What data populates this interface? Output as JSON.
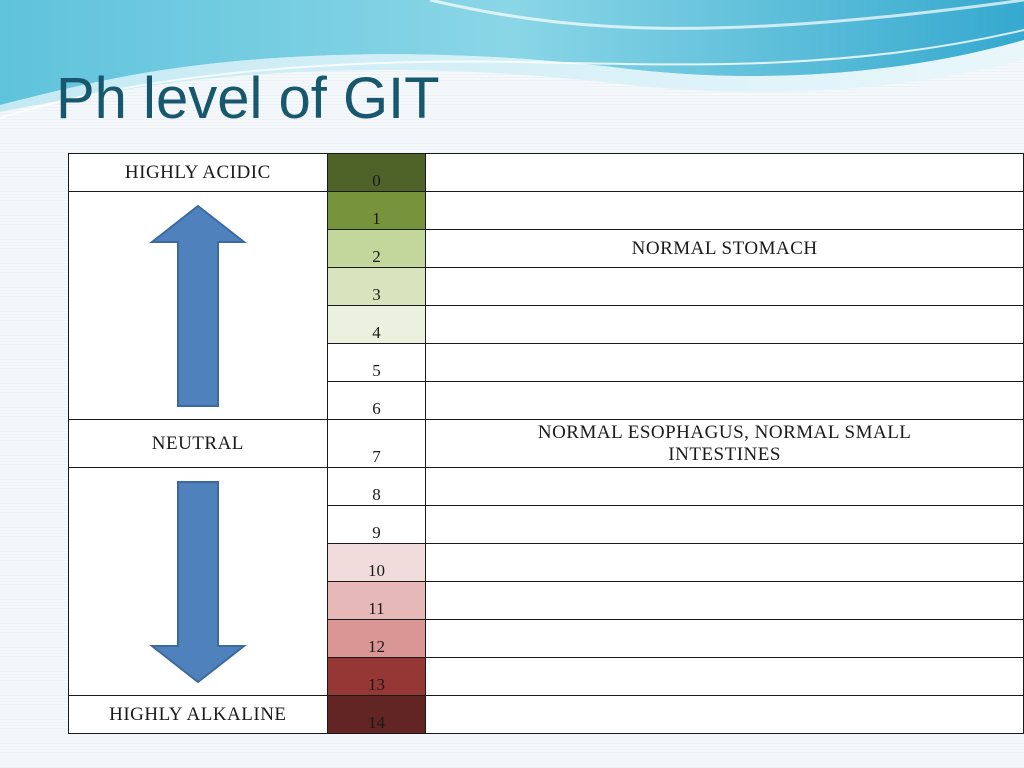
{
  "slide": {
    "title": "Ph level of GIT"
  },
  "scale": {
    "labels": {
      "highly_acidic": "HIGHLY ACIDIC",
      "neutral": "NEUTRAL",
      "highly_alkaline": "HIGHLY ALKALINE"
    },
    "levels": [
      {
        "ph": "0",
        "color": "#4f6228",
        "desc": ""
      },
      {
        "ph": "1",
        "color": "#77933c",
        "desc": ""
      },
      {
        "ph": "2",
        "color": "#c3d69b",
        "desc": "NORMAL STOMACH"
      },
      {
        "ph": "3",
        "color": "#d7e4bd",
        "desc": ""
      },
      {
        "ph": "4",
        "color": "#ebf1de",
        "desc": ""
      },
      {
        "ph": "5",
        "color": "#ffffff",
        "desc": ""
      },
      {
        "ph": "6",
        "color": "#ffffff",
        "desc": ""
      },
      {
        "ph": "7",
        "color": "#ffffff",
        "desc": "NORMAL ESOPHAGUS, NORMAL SMALL INTESTINES"
      },
      {
        "ph": "8",
        "color": "#ffffff",
        "desc": ""
      },
      {
        "ph": "9",
        "color": "#ffffff",
        "desc": ""
      },
      {
        "ph": "10",
        "color": "#f2dcdb",
        "desc": ""
      },
      {
        "ph": "11",
        "color": "#e6b9b8",
        "desc": ""
      },
      {
        "ph": "12",
        "color": "#d99694",
        "desc": ""
      },
      {
        "ph": "13",
        "color": "#953735",
        "desc": ""
      },
      {
        "ph": "14",
        "color": "#632523",
        "desc": ""
      }
    ],
    "arrow_color": "#4f81bd",
    "arrow_icons": {
      "up": "arrow-up-icon",
      "down": "arrow-down-icon"
    }
  }
}
